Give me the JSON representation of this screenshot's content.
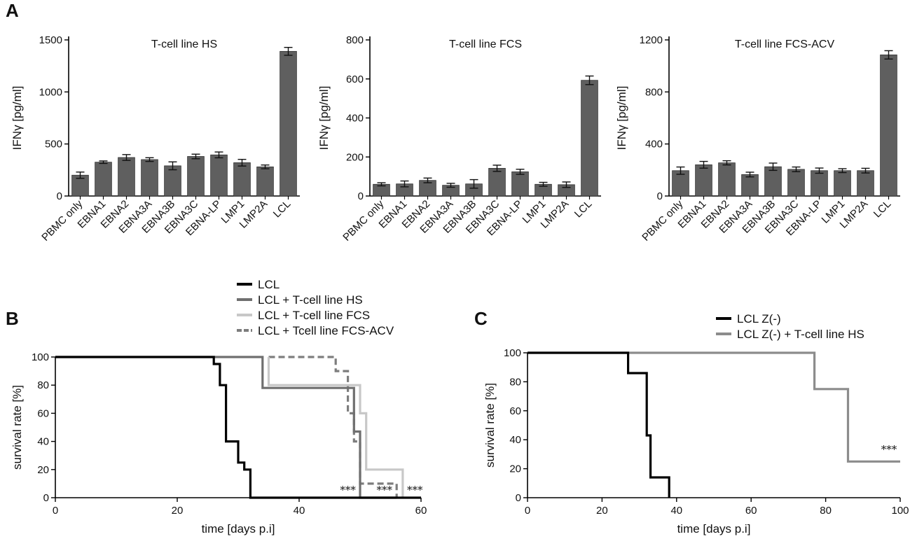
{
  "panels": {
    "a": "A",
    "b": "B",
    "c": "C"
  },
  "chart_data": [
    {
      "type": "bar",
      "panel": "A",
      "title": "T-cell line HS",
      "ylabel": "IFNγ [pg/ml]",
      "categories": [
        "PBMC only",
        "EBNA1",
        "EBNA2",
        "EBNA3A",
        "EBNA3B",
        "EBNA3C",
        "EBNA-LP",
        "LMP1",
        "LMP2A",
        "LCL"
      ],
      "values": [
        200,
        325,
        370,
        350,
        290,
        380,
        395,
        320,
        280,
        1390
      ],
      "errors": [
        30,
        12,
        28,
        18,
        38,
        22,
        28,
        32,
        18,
        38
      ],
      "ylim": [
        0,
        1500
      ],
      "yticks": [
        0,
        500,
        1000,
        1500
      ],
      "color": "#5f5f5f"
    },
    {
      "type": "bar",
      "panel": "A",
      "title": "T-cell line FCS",
      "ylabel": "IFNγ [pg/ml]",
      "categories": [
        "PBMC only",
        "EBNA1",
        "EBNA2",
        "EBNA3A",
        "EBNA3B",
        "EBNA3C",
        "EBNA-LP",
        "LMP1",
        "LMP2A",
        "LCL"
      ],
      "values": [
        60,
        62,
        80,
        55,
        62,
        142,
        124,
        60,
        58,
        593
      ],
      "errors": [
        8,
        15,
        12,
        10,
        22,
        16,
        13,
        10,
        14,
        22
      ],
      "ylim": [
        0,
        800
      ],
      "yticks": [
        0,
        200,
        400,
        600,
        800
      ],
      "color": "#5f5f5f"
    },
    {
      "type": "bar",
      "panel": "A",
      "title": "T-cell line FCS-ACV",
      "ylabel": "IFNγ [pg/ml]",
      "categories": [
        "PBMC only",
        "EBNA1",
        "EBNA2",
        "EBNA3A",
        "EBNA3B",
        "EBNA3C",
        "EBNA-LP",
        "LMP1",
        "LMP2A",
        "LCL"
      ],
      "values": [
        195,
        240,
        255,
        165,
        225,
        205,
        195,
        195,
        195,
        1085
      ],
      "errors": [
        28,
        26,
        16,
        18,
        28,
        18,
        20,
        15,
        18,
        32
      ],
      "ylim": [
        0,
        1200
      ],
      "yticks": [
        0,
        400,
        800,
        1200
      ],
      "color": "#5f5f5f"
    },
    {
      "type": "line",
      "panel": "B",
      "xlabel": "time [days p.i]",
      "ylabel": "survival rate [%]",
      "xlim": [
        0,
        60
      ],
      "ylim": [
        0,
        100
      ],
      "xticks": [
        0,
        20,
        40,
        60
      ],
      "yticks": [
        0,
        20,
        40,
        60,
        80,
        100
      ],
      "series": [
        {
          "name": "LCL",
          "color": "#000000",
          "dash": false,
          "points": [
            [
              0,
              100
            ],
            [
              26,
              100
            ],
            [
              26,
              95
            ],
            [
              27,
              95
            ],
            [
              27,
              80
            ],
            [
              28,
              80
            ],
            [
              28,
              40
            ],
            [
              30,
              40
            ],
            [
              30,
              25
            ],
            [
              31,
              25
            ],
            [
              31,
              20
            ],
            [
              32,
              20
            ],
            [
              32,
              0
            ],
            [
              60,
              0
            ]
          ]
        },
        {
          "name": "LCL + T-cell line HS",
          "color": "#6f6f6f",
          "dash": false,
          "points": [
            [
              0,
              100
            ],
            [
              34,
              100
            ],
            [
              34,
              78
            ],
            [
              49,
              78
            ],
            [
              49,
              47
            ],
            [
              50,
              47
            ],
            [
              50,
              0
            ],
            [
              56,
              0
            ]
          ]
        },
        {
          "name": "LCL + T-cell line FCS",
          "color": "#c8c8c8",
          "dash": false,
          "points": [
            [
              35,
              100
            ],
            [
              35,
              80
            ],
            [
              50,
              80
            ],
            [
              50,
              60
            ],
            [
              51,
              60
            ],
            [
              51,
              20
            ],
            [
              57,
              20
            ],
            [
              57,
              0
            ]
          ]
        },
        {
          "name": "LCL + Tcell line FCS-ACV",
          "color": "#7d7d7d",
          "dash": true,
          "points": [
            [
              35,
              100
            ],
            [
              46,
              100
            ],
            [
              46,
              90
            ],
            [
              48,
              90
            ],
            [
              48,
              60
            ],
            [
              49,
              60
            ],
            [
              49,
              40
            ],
            [
              50,
              40
            ],
            [
              50,
              10
            ],
            [
              56,
              10
            ],
            [
              56,
              0
            ]
          ]
        }
      ],
      "annotations": [
        {
          "text": "***",
          "x": 48,
          "y": 3
        },
        {
          "text": "***",
          "x": 54,
          "y": 3
        },
        {
          "text": "***",
          "x": 59,
          "y": 3
        }
      ],
      "legend_position": "top"
    },
    {
      "type": "line",
      "panel": "C",
      "xlabel": "time [days p.i]",
      "ylabel": "survival rate [%]",
      "xlim": [
        0,
        100
      ],
      "ylim": [
        0,
        100
      ],
      "xticks": [
        0,
        20,
        40,
        60,
        80,
        100
      ],
      "yticks": [
        0,
        20,
        40,
        60,
        80,
        100
      ],
      "series": [
        {
          "name": "LCL Z(-)",
          "color": "#000000",
          "dash": false,
          "points": [
            [
              0,
              100
            ],
            [
              27,
              100
            ],
            [
              27,
              86
            ],
            [
              32,
              86
            ],
            [
              32,
              43
            ],
            [
              33,
              43
            ],
            [
              33,
              14
            ],
            [
              38,
              14
            ],
            [
              38,
              0
            ]
          ]
        },
        {
          "name": "LCL Z(-) + T-cell line HS",
          "color": "#8c8c8c",
          "dash": false,
          "points": [
            [
              0,
              100
            ],
            [
              77,
              100
            ],
            [
              77,
              75
            ],
            [
              86,
              75
            ],
            [
              86,
              25
            ],
            [
              100,
              25
            ]
          ]
        }
      ],
      "annotations": [
        {
          "text": "***",
          "x": 97,
          "y": 31
        }
      ],
      "legend_position": "top-right"
    }
  ]
}
